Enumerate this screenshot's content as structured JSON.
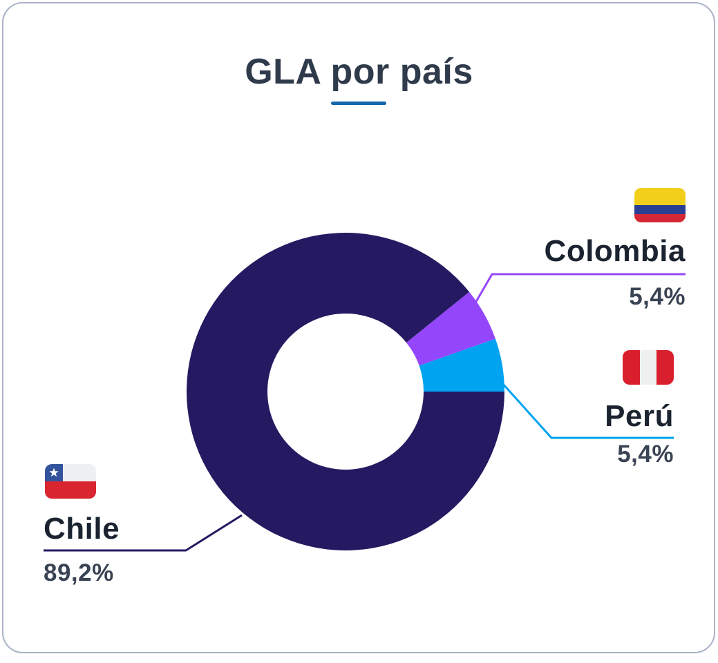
{
  "page": {
    "background": "#FFFFFF"
  },
  "card": {
    "title": "GLA por país",
    "accent_color": "#1566AE",
    "border_color": "#AAB2C8"
  },
  "chart_data": {
    "type": "pie",
    "variant": "donut",
    "title": "GLA por país",
    "value_unit": "%",
    "start_angle_deg": 0,
    "direction": "counterclockwise",
    "inner_radius_ratio": 0.49,
    "legend_position": "outside-callouts",
    "slices": [
      {
        "label": "Chile",
        "value": 89.2,
        "display_value": "89,2%",
        "color": "#251A61",
        "flag_icon": "chile-flag"
      },
      {
        "label": "Colombia",
        "value": 5.4,
        "display_value": "5,4%",
        "color": "#9447FA",
        "flag_icon": "colombia-flag"
      },
      {
        "label": "Perú",
        "value": 5.4,
        "display_value": "5,4%",
        "color": "#00A3F0",
        "flag_icon": "peru-flag"
      }
    ]
  },
  "colors": {
    "title_text": "#2F3A4B",
    "label_text": "#1B2330",
    "value_text": "#3A4354"
  },
  "flags": {
    "chile": {
      "blue": "#33549C",
      "white": "#EEF0F1",
      "red": "#D8252F",
      "star": "#FFFFFF"
    },
    "colombia": {
      "yellow": "#F2CF1A",
      "blue": "#2A3E92",
      "red": "#D52736"
    },
    "peru": {
      "red": "#D91F2D",
      "white": "#EFF0F0"
    }
  }
}
